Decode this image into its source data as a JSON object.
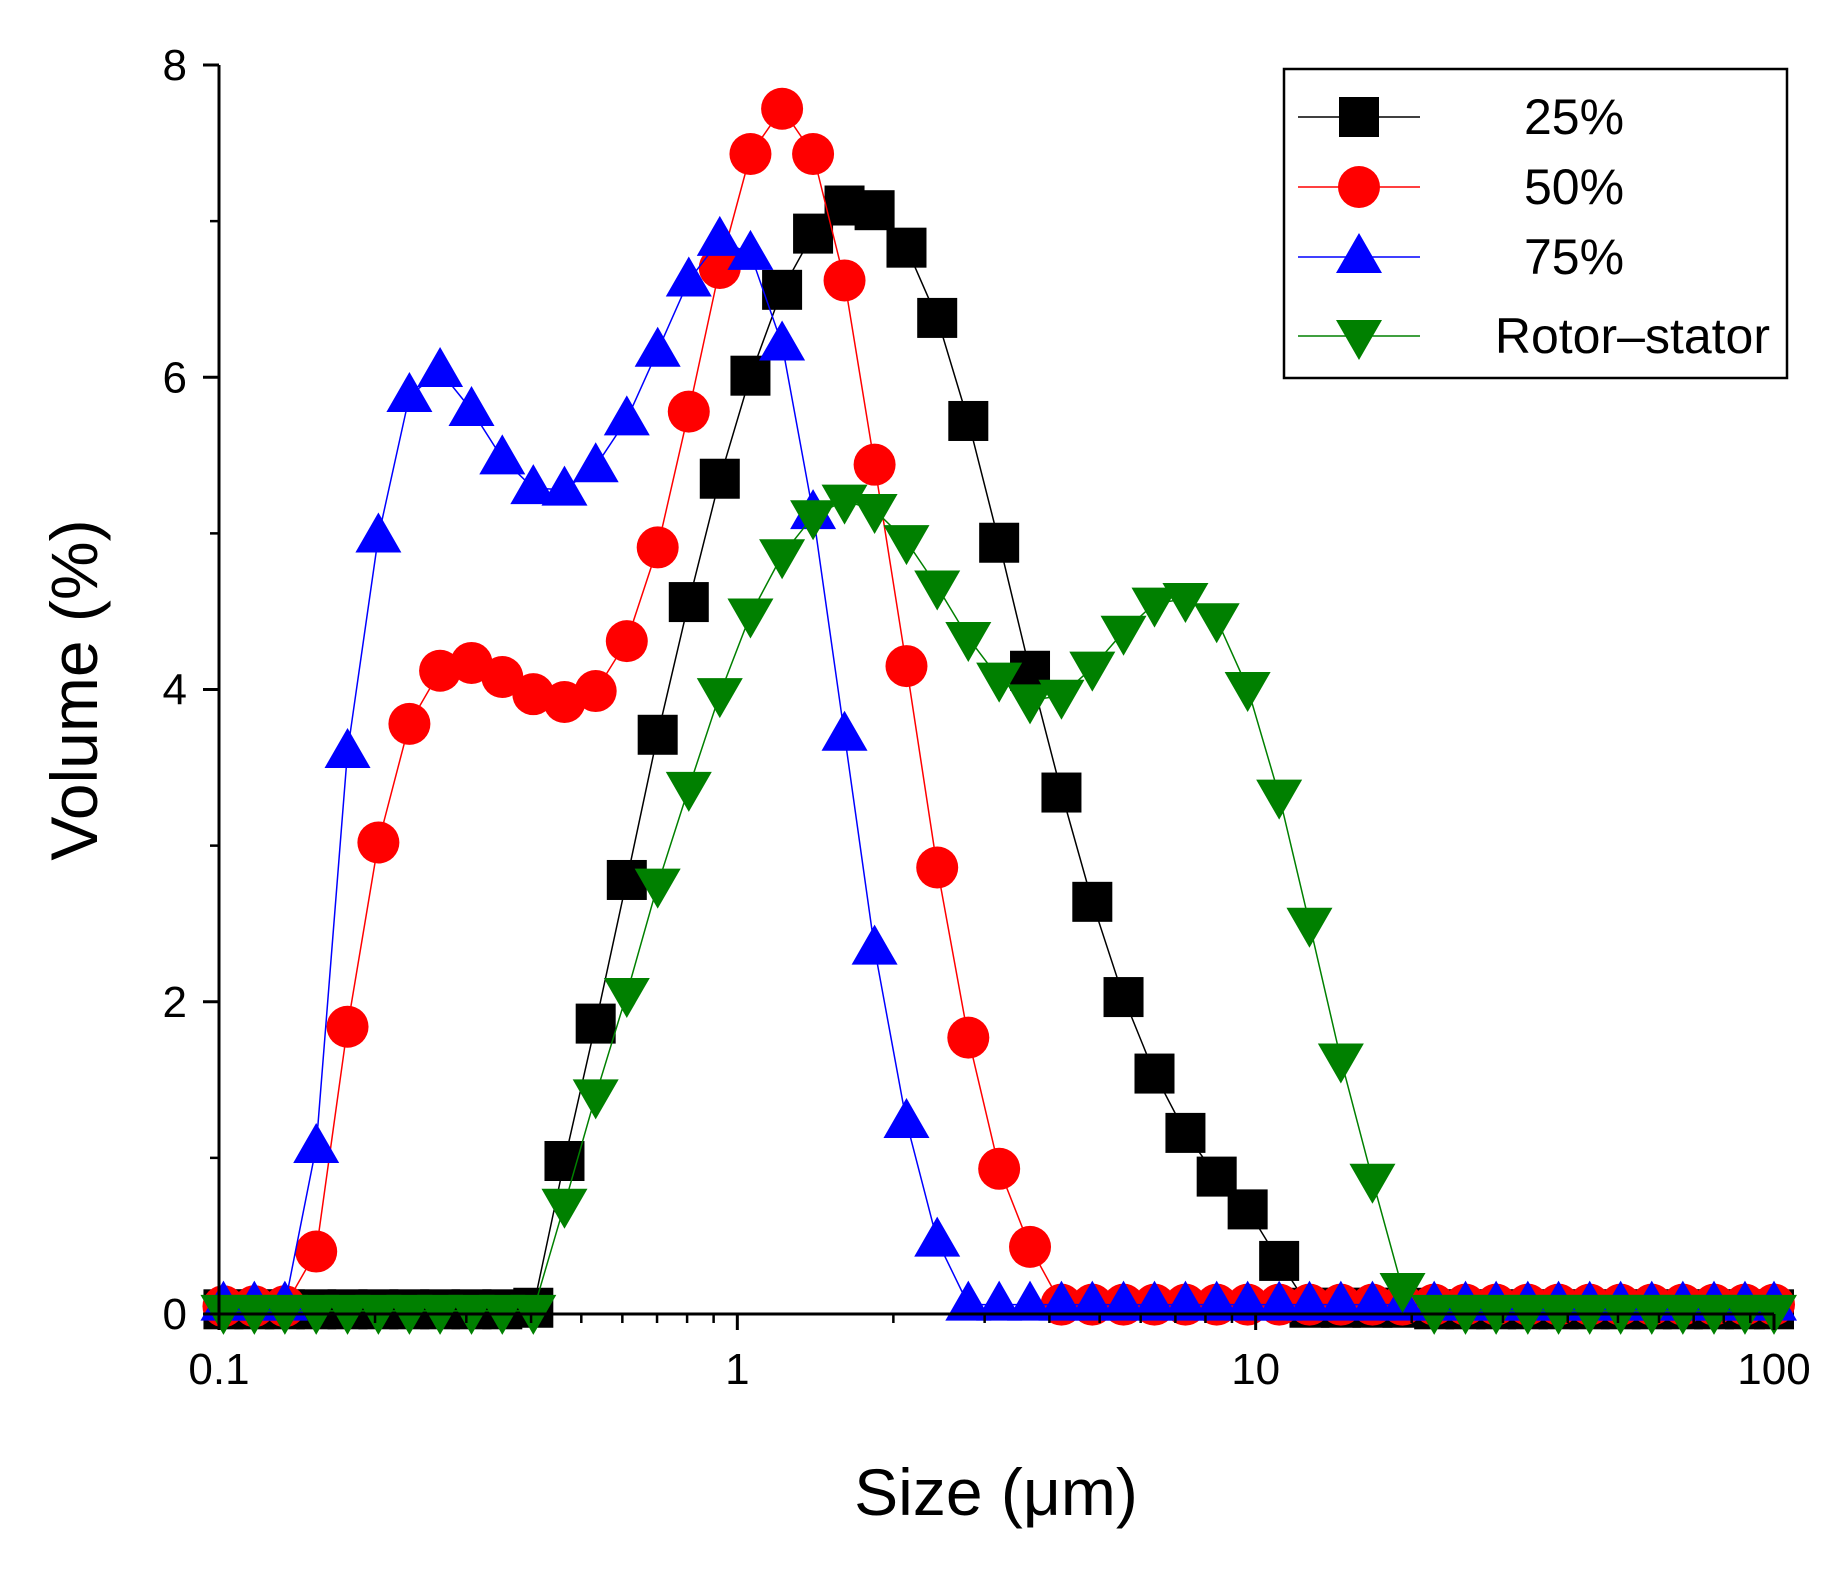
{
  "chart_data": {
    "type": "scatter",
    "title": "",
    "xlabel": "Size (μm)",
    "ylabel": "Volume (%)",
    "xscale": "log",
    "xlim": [
      0.1,
      100
    ],
    "ylim": [
      0,
      8
    ],
    "x_ticks": [
      0.1,
      1,
      10,
      100
    ],
    "x_tick_labels": [
      "0.1",
      "1",
      "10",
      "100"
    ],
    "y_ticks": [
      0,
      2,
      4,
      6,
      8
    ],
    "y_tick_labels": [
      "0",
      "2",
      "4",
      "6",
      "8"
    ],
    "grid": false,
    "legend_position": "top-right",
    "series": [
      {
        "name": "25%",
        "color": "#000000",
        "marker": "square",
        "points": [
          [
            0.102,
            0.03
          ],
          [
            0.117,
            0.03
          ],
          [
            0.134,
            0.03
          ],
          [
            0.154,
            0.03
          ],
          [
            0.177,
            0.03
          ],
          [
            0.203,
            0.03
          ],
          [
            0.233,
            0.03
          ],
          [
            0.267,
            0.03
          ],
          [
            0.307,
            0.03
          ],
          [
            0.352,
            0.03
          ],
          [
            0.404,
            0.04
          ],
          [
            0.464,
            0.98
          ],
          [
            0.533,
            1.86
          ],
          [
            0.612,
            2.78
          ],
          [
            0.702,
            3.71
          ],
          [
            0.806,
            4.56
          ],
          [
            0.925,
            5.35
          ],
          [
            1.06,
            6.01
          ],
          [
            1.22,
            6.56
          ],
          [
            1.4,
            6.92
          ],
          [
            1.61,
            7.1
          ],
          [
            1.84,
            7.07
          ],
          [
            2.12,
            6.83
          ],
          [
            2.43,
            6.38
          ],
          [
            2.79,
            5.72
          ],
          [
            3.2,
            4.94
          ],
          [
            3.67,
            4.12
          ],
          [
            4.22,
            3.34
          ],
          [
            4.84,
            2.64
          ],
          [
            5.56,
            2.03
          ],
          [
            6.38,
            1.54
          ],
          [
            7.32,
            1.16
          ],
          [
            8.41,
            0.88
          ],
          [
            9.65,
            0.67
          ],
          [
            11.1,
            0.34
          ],
          [
            12.7,
            0.04
          ],
          [
            14.6,
            0.04
          ],
          [
            16.8,
            0.04
          ],
          [
            19.2,
            0.04
          ],
          [
            22.1,
            0.03
          ],
          [
            25.4,
            0.03
          ],
          [
            29.1,
            0.03
          ],
          [
            33.5,
            0.03
          ],
          [
            38.4,
            0.03
          ],
          [
            44.1,
            0.03
          ],
          [
            50.6,
            0.03
          ],
          [
            58.1,
            0.03
          ],
          [
            66.7,
            0.03
          ],
          [
            76.6,
            0.03
          ],
          [
            87.9,
            0.03
          ],
          [
            100,
            0.03
          ]
        ]
      },
      {
        "name": "50%",
        "color": "#ff0000",
        "marker": "circle",
        "points": [
          [
            0.102,
            0.05
          ],
          [
            0.117,
            0.05
          ],
          [
            0.134,
            0.05
          ],
          [
            0.154,
            0.4
          ],
          [
            0.177,
            1.84
          ],
          [
            0.203,
            3.02
          ],
          [
            0.233,
            3.78
          ],
          [
            0.267,
            4.12
          ],
          [
            0.307,
            4.17
          ],
          [
            0.352,
            4.08
          ],
          [
            0.404,
            3.97
          ],
          [
            0.464,
            3.92
          ],
          [
            0.533,
            3.99
          ],
          [
            0.612,
            4.31
          ],
          [
            0.702,
            4.91
          ],
          [
            0.806,
            5.78
          ],
          [
            0.925,
            6.7
          ],
          [
            1.06,
            7.43
          ],
          [
            1.22,
            7.72
          ],
          [
            1.4,
            7.43
          ],
          [
            1.61,
            6.62
          ],
          [
            1.84,
            5.44
          ],
          [
            2.12,
            4.15
          ],
          [
            2.43,
            2.86
          ],
          [
            2.79,
            1.77
          ],
          [
            3.2,
            0.93
          ],
          [
            3.67,
            0.43
          ],
          [
            4.22,
            0.06
          ],
          [
            4.84,
            0.06
          ],
          [
            5.56,
            0.06
          ],
          [
            6.38,
            0.06
          ],
          [
            7.32,
            0.06
          ],
          [
            8.41,
            0.06
          ],
          [
            9.65,
            0.06
          ],
          [
            11.1,
            0.06
          ],
          [
            12.7,
            0.06
          ],
          [
            14.6,
            0.06
          ],
          [
            16.8,
            0.06
          ],
          [
            19.2,
            0.06
          ],
          [
            22.1,
            0.06
          ],
          [
            25.4,
            0.06
          ],
          [
            29.1,
            0.06
          ],
          [
            33.5,
            0.06
          ],
          [
            38.4,
            0.06
          ],
          [
            44.1,
            0.06
          ],
          [
            50.6,
            0.06
          ],
          [
            58.1,
            0.06
          ],
          [
            66.7,
            0.06
          ],
          [
            76.6,
            0.06
          ],
          [
            87.9,
            0.06
          ],
          [
            100,
            0.06
          ]
        ]
      },
      {
        "name": "75%",
        "color": "#0000ff",
        "marker": "triangle-up",
        "points": [
          [
            0.102,
            0.06
          ],
          [
            0.117,
            0.06
          ],
          [
            0.134,
            0.06
          ],
          [
            0.154,
            1.07
          ],
          [
            0.177,
            3.6
          ],
          [
            0.203,
            4.98
          ],
          [
            0.233,
            5.88
          ],
          [
            0.267,
            6.04
          ],
          [
            0.307,
            5.79
          ],
          [
            0.352,
            5.48
          ],
          [
            0.404,
            5.29
          ],
          [
            0.464,
            5.28
          ],
          [
            0.533,
            5.43
          ],
          [
            0.612,
            5.73
          ],
          [
            0.702,
            6.17
          ],
          [
            0.806,
            6.62
          ],
          [
            0.925,
            6.88
          ],
          [
            1.06,
            6.79
          ],
          [
            1.22,
            6.21
          ],
          [
            1.4,
            5.13
          ],
          [
            1.61,
            3.71
          ],
          [
            1.84,
            2.34
          ],
          [
            2.12,
            1.23
          ],
          [
            2.43,
            0.47
          ],
          [
            2.79,
            0.06
          ],
          [
            3.2,
            0.06
          ],
          [
            3.67,
            0.06
          ],
          [
            4.22,
            0.06
          ],
          [
            4.84,
            0.06
          ],
          [
            5.56,
            0.06
          ],
          [
            6.38,
            0.06
          ],
          [
            7.32,
            0.06
          ],
          [
            8.41,
            0.06
          ],
          [
            9.65,
            0.06
          ],
          [
            11.1,
            0.06
          ],
          [
            12.7,
            0.06
          ],
          [
            14.6,
            0.06
          ],
          [
            16.8,
            0.06
          ],
          [
            19.2,
            0.06
          ],
          [
            22.1,
            0.06
          ],
          [
            25.4,
            0.06
          ],
          [
            29.1,
            0.06
          ],
          [
            33.5,
            0.06
          ],
          [
            38.4,
            0.06
          ],
          [
            44.1,
            0.06
          ],
          [
            50.6,
            0.06
          ],
          [
            58.1,
            0.06
          ],
          [
            66.7,
            0.06
          ],
          [
            76.6,
            0.06
          ],
          [
            87.9,
            0.06
          ],
          [
            100,
            0.06
          ]
        ]
      },
      {
        "name": "Rotor–stator",
        "color": "#008000",
        "marker": "triangle-down",
        "points": [
          [
            0.102,
            0.02
          ],
          [
            0.117,
            0.02
          ],
          [
            0.134,
            0.02
          ],
          [
            0.154,
            0.02
          ],
          [
            0.177,
            0.02
          ],
          [
            0.203,
            0.02
          ],
          [
            0.233,
            0.02
          ],
          [
            0.267,
            0.02
          ],
          [
            0.307,
            0.02
          ],
          [
            0.352,
            0.02
          ],
          [
            0.404,
            0.02
          ],
          [
            0.464,
            0.7
          ],
          [
            0.533,
            1.4
          ],
          [
            0.612,
            2.05
          ],
          [
            0.702,
            2.75
          ],
          [
            0.806,
            3.37
          ],
          [
            0.925,
            3.97
          ],
          [
            1.06,
            4.48
          ],
          [
            1.22,
            4.86
          ],
          [
            1.4,
            5.11
          ],
          [
            1.61,
            5.21
          ],
          [
            1.84,
            5.15
          ],
          [
            2.12,
            4.95
          ],
          [
            2.43,
            4.66
          ],
          [
            2.79,
            4.33
          ],
          [
            3.2,
            4.07
          ],
          [
            3.67,
            3.93
          ],
          [
            4.22,
            3.96
          ],
          [
            4.84,
            4.14
          ],
          [
            5.56,
            4.37
          ],
          [
            6.38,
            4.55
          ],
          [
            7.32,
            4.58
          ],
          [
            8.41,
            4.45
          ],
          [
            9.65,
            4.01
          ],
          [
            11.1,
            3.32
          ],
          [
            12.7,
            2.5
          ],
          [
            14.6,
            1.63
          ],
          [
            16.8,
            0.86
          ],
          [
            19.2,
            0.16
          ],
          [
            22.1,
            0.02
          ],
          [
            25.4,
            0.02
          ],
          [
            29.1,
            0.02
          ],
          [
            33.5,
            0.02
          ],
          [
            38.4,
            0.02
          ],
          [
            44.1,
            0.02
          ],
          [
            50.6,
            0.02
          ],
          [
            58.1,
            0.02
          ],
          [
            66.7,
            0.02
          ],
          [
            76.6,
            0.02
          ],
          [
            87.9,
            0.02
          ],
          [
            100,
            0.02
          ]
        ]
      }
    ]
  }
}
